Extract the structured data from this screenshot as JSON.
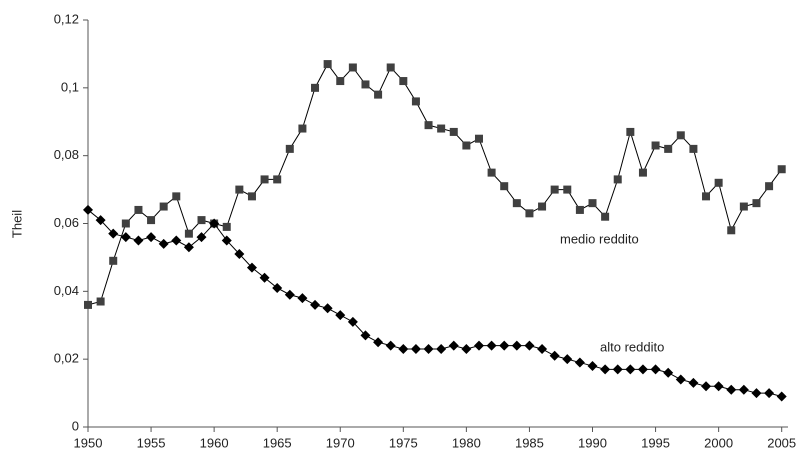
{
  "chart_data": {
    "type": "line",
    "ylabel": "Theil",
    "x": [
      1950,
      1951,
      1952,
      1953,
      1954,
      1955,
      1956,
      1957,
      1958,
      1959,
      1960,
      1961,
      1962,
      1963,
      1964,
      1965,
      1966,
      1967,
      1968,
      1969,
      1970,
      1971,
      1972,
      1973,
      1974,
      1975,
      1976,
      1977,
      1978,
      1979,
      1980,
      1981,
      1982,
      1983,
      1984,
      1985,
      1986,
      1987,
      1988,
      1989,
      1990,
      1991,
      1992,
      1993,
      1994,
      1995,
      1996,
      1997,
      1998,
      1999,
      2000,
      2001,
      2002,
      2003,
      2004,
      2005
    ],
    "series": [
      {
        "name": "medio reddito",
        "color": "#404040",
        "marker": "square",
        "values": [
          0.036,
          0.037,
          0.049,
          0.06,
          0.064,
          0.061,
          0.065,
          0.068,
          0.057,
          0.061,
          0.06,
          0.059,
          0.07,
          0.068,
          0.073,
          0.073,
          0.082,
          0.088,
          0.1,
          0.107,
          0.102,
          0.106,
          0.101,
          0.098,
          0.106,
          0.102,
          0.096,
          0.089,
          0.088,
          0.087,
          0.083,
          0.085,
          0.075,
          0.071,
          0.066,
          0.063,
          0.065,
          0.07,
          0.07,
          0.064,
          0.066,
          0.062,
          0.073,
          0.087,
          0.075,
          0.083,
          0.082,
          0.086,
          0.082,
          0.068,
          0.072,
          0.058,
          0.065,
          0.066,
          0.071,
          0.076
        ]
      },
      {
        "name": "alto reddito",
        "color": "#000000",
        "marker": "diamond",
        "values": [
          0.064,
          0.061,
          0.057,
          0.056,
          0.055,
          0.056,
          0.054,
          0.055,
          0.053,
          0.056,
          0.06,
          0.055,
          0.051,
          0.047,
          0.044,
          0.041,
          0.039,
          0.038,
          0.036,
          0.035,
          0.033,
          0.031,
          0.027,
          0.025,
          0.024,
          0.023,
          0.023,
          0.023,
          0.023,
          0.024,
          0.023,
          0.024,
          0.024,
          0.024,
          0.024,
          0.024,
          0.023,
          0.021,
          0.02,
          0.019,
          0.018,
          0.017,
          0.017,
          0.017,
          0.017,
          0.017,
          0.016,
          0.014,
          0.013,
          0.012,
          0.012,
          0.011,
          0.011,
          0.01,
          0.01,
          0.009
        ]
      }
    ],
    "xlim": [
      1950,
      2005.5
    ],
    "xticks": [
      1950,
      1955,
      1960,
      1965,
      1970,
      1975,
      1980,
      1985,
      1990,
      1995,
      2000,
      2005
    ],
    "ylim": [
      0,
      0.12
    ],
    "yticks": [
      0,
      {
        "value": 0.02,
        "label": "0,02"
      },
      {
        "value": 0.04,
        "label": "0,04"
      },
      {
        "value": 0.06,
        "label": "0,06"
      },
      {
        "value": 0.08,
        "label": "0,08"
      },
      {
        "value": 0.1,
        "label": "0,1"
      },
      {
        "value": 0.12,
        "label": "0,12"
      }
    ],
    "grid": false
  }
}
